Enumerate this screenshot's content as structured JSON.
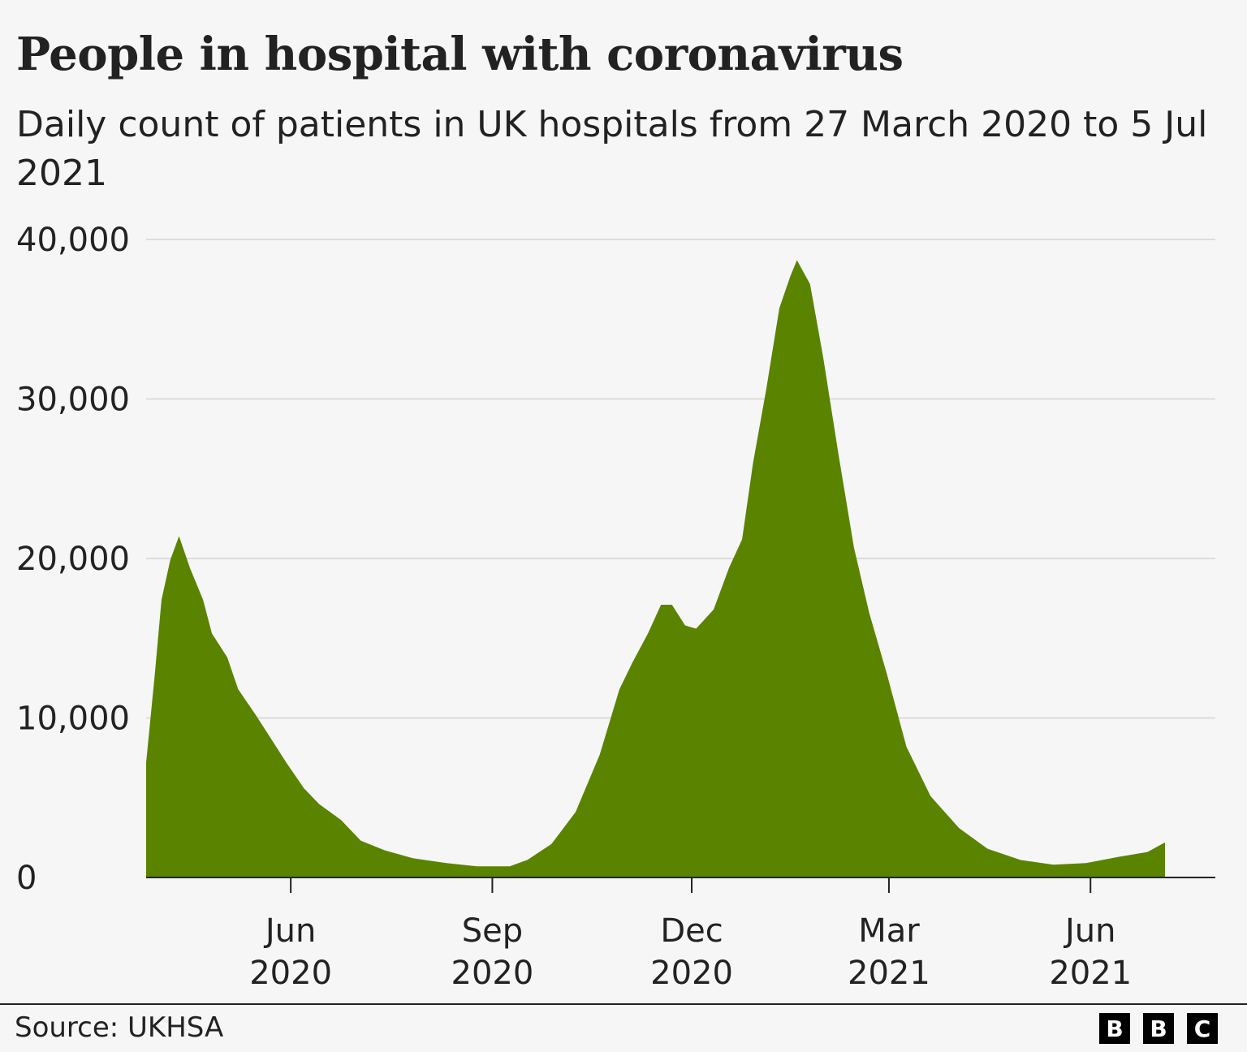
{
  "title": "People in hospital with coronavirus",
  "subtitle": "Daily count of patients in UK hospitals from 27 March 2020 to 5 Jul 2021",
  "source": "Source: UKHSA",
  "logo": [
    "B",
    "B",
    "C"
  ],
  "chart_data": {
    "type": "area",
    "title": "People in hospital with coronavirus",
    "xlabel": "",
    "ylabel": "",
    "xlim": [
      "2020-03-27",
      "2021-07-05"
    ],
    "ylim": [
      0,
      40000
    ],
    "grid": true,
    "color": "#5a8300",
    "y_ticks": [
      {
        "value": 0,
        "label": "0"
      },
      {
        "value": 10000,
        "label": "10,000"
      },
      {
        "value": 20000,
        "label": "20,000"
      },
      {
        "value": 30000,
        "label": "30,000"
      },
      {
        "value": 40000,
        "label": "40,000"
      }
    ],
    "x_ticks": [
      {
        "date": "2020-06-01",
        "label": [
          "Jun",
          "2020"
        ]
      },
      {
        "date": "2020-09-01",
        "label": [
          "Sep",
          "2020"
        ]
      },
      {
        "date": "2020-12-01",
        "label": [
          "Dec",
          "2020"
        ]
      },
      {
        "date": "2021-03-01",
        "label": [
          "Mar",
          "2021"
        ]
      },
      {
        "date": "2021-06-01",
        "label": [
          "Jun",
          "2021"
        ]
      }
    ],
    "x": [
      "2020-03-27",
      "2020-03-31",
      "2020-04-03",
      "2020-04-07",
      "2020-04-11",
      "2020-04-16",
      "2020-04-22",
      "2020-04-26",
      "2020-05-03",
      "2020-05-08",
      "2020-05-16",
      "2020-05-23",
      "2020-05-30",
      "2020-06-07",
      "2020-06-14",
      "2020-06-24",
      "2020-07-03",
      "2020-07-14",
      "2020-07-27",
      "2020-08-11",
      "2020-08-25",
      "2020-09-09",
      "2020-09-17",
      "2020-09-28",
      "2020-10-09",
      "2020-10-20",
      "2020-10-29",
      "2020-11-04",
      "2020-11-11",
      "2020-11-17",
      "2020-11-22",
      "2020-11-28",
      "2020-12-03",
      "2020-12-11",
      "2020-12-18",
      "2020-12-24",
      "2020-12-29",
      "2021-01-04",
      "2021-01-10",
      "2021-01-15",
      "2021-01-18",
      "2021-01-24",
      "2021-01-30",
      "2021-02-06",
      "2021-02-13",
      "2021-02-20",
      "2021-02-28",
      "2021-03-09",
      "2021-03-20",
      "2021-04-02",
      "2021-04-15",
      "2021-04-30",
      "2021-05-15",
      "2021-05-30",
      "2021-06-14",
      "2021-06-27",
      "2021-07-05"
    ],
    "values": [
      7200,
      12800,
      17400,
      19900,
      21400,
      19400,
      17400,
      15300,
      13800,
      11800,
      10200,
      8700,
      7200,
      5600,
      4600,
      3600,
      2300,
      1700,
      1200,
      900,
      700,
      700,
      1100,
      2100,
      4100,
      7700,
      11800,
      13500,
      15300,
      17100,
      17100,
      15800,
      15600,
      16800,
      19400,
      21200,
      26000,
      30600,
      35700,
      37700,
      38700,
      37200,
      32600,
      26500,
      20700,
      16600,
      12800,
      8200,
      5100,
      3100,
      1800,
      1100,
      800,
      900,
      1300,
      1600,
      2200
    ]
  }
}
